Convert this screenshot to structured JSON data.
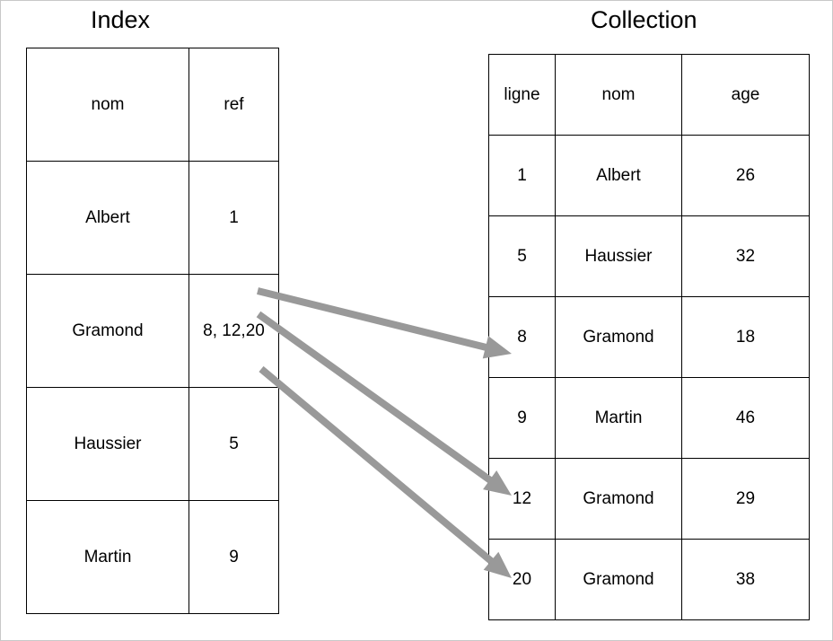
{
  "index": {
    "title": "Index",
    "headers": [
      "nom",
      "ref"
    ],
    "rows": [
      [
        "Albert",
        "1"
      ],
      [
        "Gramond",
        "8, 12,20"
      ],
      [
        "Haussier",
        "5"
      ],
      [
        "Martin",
        "9"
      ]
    ]
  },
  "collection": {
    "title": "Collection",
    "headers": [
      "ligne",
      "nom",
      "age"
    ],
    "rows": [
      [
        "1",
        "Albert",
        "26"
      ],
      [
        "5",
        "Haussier",
        "32"
      ],
      [
        "8",
        "Gramond",
        "18"
      ],
      [
        "9",
        "Martin",
        "46"
      ],
      [
        "12",
        "Gramond",
        "29"
      ],
      [
        "20",
        "Gramond",
        "38"
      ]
    ]
  },
  "arrows": [
    {
      "from_index_row": 1,
      "to_collection_row": 2
    },
    {
      "from_index_row": 1,
      "to_collection_row": 4
    },
    {
      "from_index_row": 1,
      "to_collection_row": 5
    }
  ],
  "colors": {
    "arrow": "#999999",
    "border": "#000000"
  }
}
